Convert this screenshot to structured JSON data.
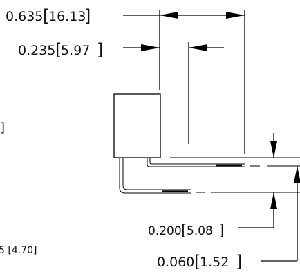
{
  "dimensions": {
    "overall_width": {
      "inch": "0.635",
      "mm": "16.13"
    },
    "lead_offset": {
      "inch": "0.235",
      "mm": "5.97"
    },
    "lead_pitch_lower": {
      "inch": "0.200",
      "mm": "5.08"
    },
    "lead_pitch_upper": {
      "inch": "0.060",
      "mm": "1.52"
    },
    "left_edge_fragment": "]",
    "bottom_left_fragment": "5 [4.70]"
  }
}
